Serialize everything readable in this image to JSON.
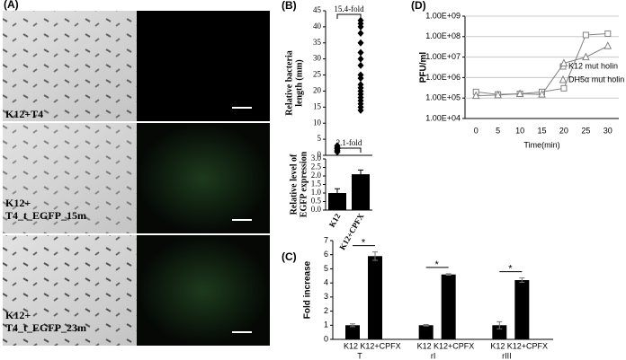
{
  "panel_labels": [
    "(A)",
    "(B)",
    "(C)",
    "(D)"
  ],
  "micrographs": {
    "labels": [
      [
        "K12+T4"
      ],
      [
        "K12+",
        "T4_t_EGFP_15m"
      ],
      [
        "K12+",
        "T4_t_EGFP_23m"
      ]
    ]
  },
  "chart_data": [
    {
      "type": "strip",
      "ylabel": [
        "Relative bacteria",
        "length (mm)"
      ],
      "ylim": [
        0,
        45
      ],
      "yticks": [
        0,
        5,
        10,
        15,
        20,
        25,
        30,
        35,
        40,
        45
      ],
      "groups": [
        {
          "values": [
            1,
            1.5,
            2,
            2.5,
            3,
            1.2,
            2.2
          ]
        },
        {
          "values": [
            14,
            15,
            16,
            17,
            18,
            19,
            20,
            21,
            22,
            24,
            25,
            28,
            30,
            32,
            35,
            38,
            40,
            41,
            42
          ]
        }
      ],
      "annotation": "15.4-fold",
      "color": "#000000"
    },
    {
      "type": "bar",
      "ylabel": [
        "Relative level of",
        "EGFP expression"
      ],
      "categories": [
        "K12",
        "K12+CPFX"
      ],
      "values": [
        1.0,
        2.1
      ],
      "errors": [
        0.25,
        0.25
      ],
      "ylim": [
        0,
        3
      ],
      "yticks": [
        {
          "value": 0,
          "label": "0.0"
        },
        0.5,
        {
          "value": 1,
          "label": "1.0"
        },
        1.5,
        {
          "value": 2,
          "label": "2.0"
        },
        2.5,
        {
          "value": 3,
          "label": "3.0"
        }
      ],
      "annotation": "2.1-fold",
      "color": "#000000"
    },
    {
      "type": "grouped-bar",
      "ylabel": "Fold increase",
      "groups": [
        "T",
        "rI",
        "rIII"
      ],
      "series": [
        {
          "name": "K12",
          "color": "#000000",
          "values": [
            1.0,
            1.0,
            1.0
          ],
          "errors": [
            0.1,
            0.05,
            0.25
          ]
        },
        {
          "name": "K12+CPFX",
          "color": "#000000",
          "values": [
            5.9,
            4.6,
            4.2
          ],
          "errors": [
            0.3,
            0.05,
            0.15
          ]
        }
      ],
      "significance": [
        "*",
        "*",
        "*"
      ],
      "ylim": [
        0,
        7
      ],
      "yticks": [
        0,
        1,
        2,
        3,
        4,
        5,
        6,
        7
      ]
    },
    {
      "type": "line",
      "ylabel": "PFU/ml",
      "xlabel": "Time(min)",
      "x": [
        0,
        5,
        10,
        15,
        20,
        25,
        30
      ],
      "xlim": [
        -2.5,
        32.5
      ],
      "xticks": [
        0,
        5,
        10,
        15,
        20,
        25,
        30
      ],
      "log_y": true,
      "ylim": [
        10000,
        1000000000
      ],
      "grid": true,
      "yticks": [
        {
          "value": 10000,
          "label": "1.00E+04"
        },
        {
          "value": 100000,
          "label": "1.00E+05"
        },
        {
          "value": 1000000,
          "label": "1.00E+06"
        },
        {
          "value": 10000000,
          "label": "1.00E+07"
        },
        {
          "value": 100000000,
          "label": "1.00E+08"
        },
        {
          "value": 1000000000,
          "label": "1.00E+09"
        }
      ],
      "series": [
        {
          "name": "K12 mut holin",
          "color": "#808080",
          "marker": "square",
          "values": [
            200000,
            150000,
            160000,
            200000,
            300000,
            120000000,
            140000000
          ]
        },
        {
          "name": "DH5α mut holin",
          "color": "#808080",
          "marker": "triangle",
          "values": [
            130000,
            140000,
            160000,
            150000,
            5000000,
            10000000,
            35000000
          ]
        }
      ]
    }
  ]
}
